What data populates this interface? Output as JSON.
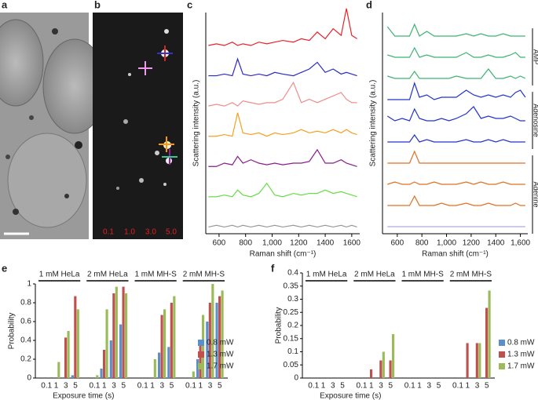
{
  "figure": {
    "panel_labels": [
      "a",
      "b",
      "c",
      "d",
      "e",
      "f"
    ],
    "micrograph_labels": [
      "0.1",
      "1.0",
      "3.0",
      "5.0"
    ]
  },
  "chart_data": [
    {
      "type": "spectra",
      "ylabel": "Scattering intensity (a.u.)",
      "xlabel": "Raman shift (cm⁻¹)",
      "xlim": [
        500,
        1660
      ],
      "xticks": [
        600,
        800,
        {
          "value": 1000,
          "label": "1,000"
        },
        1200,
        1400,
        1600
      ],
      "x": [
        520,
        580,
        640,
        700,
        740,
        780,
        840,
        900,
        960,
        1020,
        1080,
        1160,
        1220,
        1280,
        1340,
        1400,
        1460,
        1520,
        1560,
        1600,
        1640
      ],
      "series": [
        {
          "color": "#e8212a",
          "values": [
            2,
            2.5,
            2,
            3,
            2,
            2.5,
            2,
            3,
            2.5,
            3,
            3.5,
            3,
            4,
            3.5,
            6,
            4,
            7,
            5,
            13,
            5,
            4
          ]
        },
        {
          "color": "#2a2ac8",
          "values": [
            2,
            2,
            2.5,
            2,
            7,
            2.5,
            2,
            2.5,
            2,
            3,
            2.5,
            2,
            3,
            4,
            6,
            3,
            4,
            2.5,
            3,
            2.5,
            2
          ]
        },
        {
          "color": "#f08c8c",
          "values": [
            2,
            2.5,
            2,
            3,
            2,
            3.5,
            3,
            2.5,
            3,
            3,
            4,
            9,
            3,
            4,
            3,
            4,
            5,
            6,
            4,
            3,
            3
          ]
        },
        {
          "color": "#f5a020",
          "values": [
            2,
            2,
            2.5,
            2,
            9,
            3,
            2.5,
            3,
            2,
            3,
            2.5,
            3,
            4,
            3,
            3.5,
            3,
            4,
            3,
            4,
            3,
            2.5
          ]
        },
        {
          "color": "#8b1a8b",
          "values": [
            2,
            2,
            3,
            2.5,
            5,
            3,
            4,
            3,
            2.5,
            3,
            2.5,
            3,
            3,
            3.5,
            7,
            3,
            3,
            4,
            3,
            2.5,
            2
          ]
        },
        {
          "color": "#66dd44",
          "values": [
            2,
            2,
            2.5,
            2,
            4,
            2.5,
            2,
            3,
            6,
            2.5,
            2,
            3,
            2.5,
            3,
            3,
            4,
            3,
            3.5,
            3,
            2.5,
            2
          ]
        },
        {
          "color": "#999999",
          "values": [
            2,
            2.5,
            2,
            2.5,
            2,
            2.5,
            2,
            2.5,
            2,
            2.5,
            2,
            2.5,
            2,
            2.5,
            2,
            2.5,
            2,
            2.5,
            2,
            2.5,
            2
          ]
        }
      ]
    },
    {
      "type": "spectra",
      "ylabel": "Scattering intensity (a.u.)",
      "xlabel": "Raman shift (cm⁻¹)",
      "xlim": [
        480,
        1660
      ],
      "xticks": [
        600,
        800,
        {
          "value": 1000,
          "label": "1,000"
        },
        1200,
        1400,
        {
          "value": 1600,
          "label": "1,600"
        }
      ],
      "x": [
        520,
        580,
        640,
        700,
        740,
        780,
        840,
        900,
        960,
        1020,
        1080,
        1160,
        1220,
        1280,
        1340,
        1400,
        1460,
        1520,
        1560,
        1600,
        1640
      ],
      "groups": [
        {
          "name": "AMP",
          "series": [
            {
              "color": "#3cb371",
              "values": [
                7,
                3,
                3,
                3,
                8,
                3,
                5,
                3,
                3,
                3,
                3,
                4,
                3,
                4,
                3,
                3,
                4,
                3,
                3,
                3,
                3
              ]
            },
            {
              "color": "#3cb371",
              "values": [
                4,
                3,
                3,
                3,
                7,
                3,
                4,
                3,
                3,
                3,
                3,
                5,
                3,
                3,
                4,
                3,
                3,
                4,
                5,
                3,
                3
              ]
            },
            {
              "color": "#3cb371",
              "values": [
                4,
                3,
                3,
                3,
                6,
                3,
                3,
                3,
                3,
                3,
                4,
                3,
                3,
                3,
                7,
                3,
                3,
                4,
                3,
                4,
                3
              ]
            }
          ]
        },
        {
          "name": "Adenosine",
          "series": [
            {
              "color": "#2233cc",
              "values": [
                3,
                3,
                3,
                3,
                10,
                4,
                5,
                3,
                4,
                4,
                4,
                7,
                5,
                4,
                5,
                4,
                5,
                4,
                6,
                7,
                4
              ]
            },
            {
              "color": "#2233cc",
              "values": [
                5,
                3,
                4,
                3,
                8,
                4,
                3,
                3,
                4,
                3,
                4,
                6,
                9,
                4,
                5,
                4,
                4,
                5,
                4,
                3,
                3
              ]
            },
            {
              "color": "#2233cc",
              "values": [
                3,
                3,
                3,
                3,
                6,
                3,
                4,
                3,
                3,
                3,
                3,
                4,
                3,
                3,
                4,
                3,
                4,
                3,
                3,
                3,
                3
              ]
            }
          ]
        },
        {
          "name": "Adenine",
          "series": [
            {
              "color": "#e07020",
              "values": [
                3,
                3,
                3,
                3,
                8,
                3,
                3,
                3,
                3,
                3,
                3,
                3,
                3,
                3,
                3,
                3,
                3,
                3,
                3,
                3,
                3
              ]
            },
            {
              "color": "#e07020",
              "values": [
                3,
                4,
                3,
                3,
                4,
                3,
                3,
                4,
                3,
                3,
                3,
                4,
                3,
                4,
                3,
                3,
                4,
                3,
                3,
                3,
                3
              ]
            },
            {
              "color": "#e07020",
              "values": [
                3,
                3,
                3,
                3,
                7,
                3,
                3,
                3,
                4,
                3,
                3,
                4,
                3,
                3,
                4,
                3,
                3,
                3,
                4,
                3,
                3
              ]
            },
            {
              "color": "#b0a8e0",
              "values": [
                3,
                3,
                3,
                3,
                3,
                3,
                3,
                3,
                3,
                3,
                3,
                3,
                3,
                3,
                3,
                3,
                3,
                3,
                3,
                3,
                3
              ]
            }
          ]
        }
      ]
    },
    {
      "type": "grouped-bar",
      "ylabel": "Probability",
      "xlabel": "Exposure time (s)",
      "ylim": [
        0,
        1
      ],
      "yticks": [
        0,
        0.2,
        0.4,
        0.6,
        0.8,
        1
      ],
      "groups": [
        "1 mM HeLa",
        "2 mM HeLa",
        "1 mM MH-S",
        "2 mM MH-S"
      ],
      "categories": [
        "0.1",
        "1",
        "3",
        "5"
      ],
      "legend": "right-inside",
      "series": [
        {
          "name": "0.8 mW",
          "color": "#5b8fc9",
          "values": [
            [
              0,
              0,
              0,
              0.03
            ],
            [
              0,
              0.1,
              0.4,
              0.57
            ],
            [
              0,
              0,
              0.27,
              0.33
            ],
            [
              0,
              0.2,
              0.6,
              0.8
            ]
          ]
        },
        {
          "name": "1.3 mW",
          "color": "#c0504d",
          "values": [
            [
              0,
              0,
              0.43,
              0.87
            ],
            [
              0,
              0.3,
              0.9,
              0.97
            ],
            [
              0,
              0,
              0.67,
              0.8
            ],
            [
              0,
              0.4,
              0.8,
              0.87
            ]
          ]
        },
        {
          "name": "1.7 mW",
          "color": "#9bbb59",
          "values": [
            [
              0,
              0.17,
              0.5,
              0.73
            ],
            [
              0.03,
              0.73,
              0.97,
              0.9
            ],
            [
              0,
              0.2,
              0.73,
              0.87
            ],
            [
              0.07,
              0.67,
              1,
              0.93
            ]
          ]
        }
      ]
    },
    {
      "type": "grouped-bar",
      "ylabel": "Probability",
      "xlabel": "Exposure time (s)",
      "ylim": [
        0,
        0.4
      ],
      "yticks": [
        0,
        0.05,
        0.1,
        0.15,
        0.2,
        0.25,
        0.3,
        0.35,
        0.4
      ],
      "groups": [
        "1 mM HeLa",
        "2 mM HeLa",
        "1 mM MH-S",
        "2 mM MH-S"
      ],
      "categories": [
        "0.1",
        "1",
        "3",
        "5"
      ],
      "legend": "right-outside",
      "series": [
        {
          "name": "0.8 mW",
          "color": "#5b8fc9",
          "values": [
            [
              0,
              0,
              0,
              0
            ],
            [
              0,
              0,
              0,
              0
            ],
            [
              0,
              0,
              0,
              0
            ],
            [
              0,
              0,
              0,
              0
            ]
          ]
        },
        {
          "name": "1.3 mW",
          "color": "#c0504d",
          "values": [
            [
              0,
              0,
              0,
              0
            ],
            [
              0,
              0.033,
              0.067,
              0.067
            ],
            [
              0,
              0,
              0,
              0
            ],
            [
              0,
              0.133,
              0.133,
              0.267
            ]
          ]
        },
        {
          "name": "1.7 mW",
          "color": "#9bbb59",
          "values": [
            [
              0,
              0,
              0,
              0
            ],
            [
              0,
              0,
              0.1,
              0.167
            ],
            [
              0,
              0,
              0,
              0
            ],
            [
              0,
              0,
              0.133,
              0.333
            ]
          ]
        }
      ]
    }
  ]
}
